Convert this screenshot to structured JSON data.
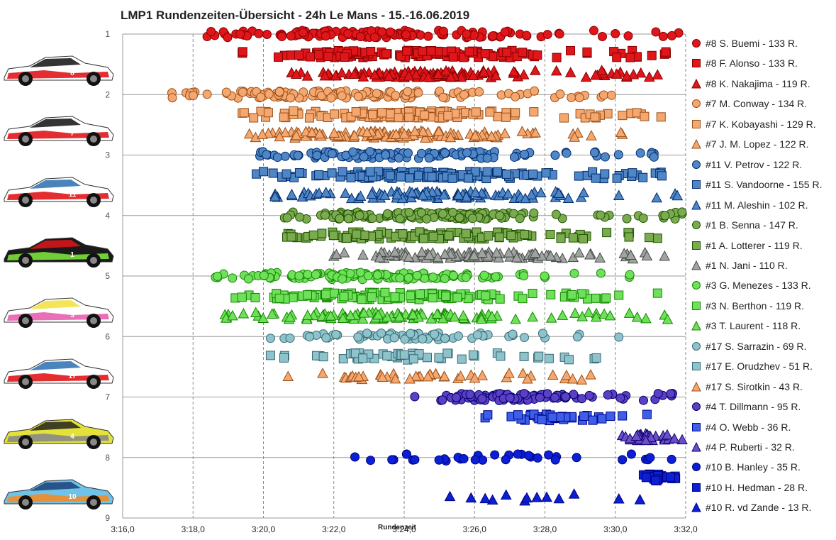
{
  "chart_data": {
    "type": "scatter",
    "title": "LMP1 Rundenzeiten-Übersicht - 24h Le Mans - 15.-16.06.2019",
    "xlabel": "Rundenzeit",
    "ylabel": "",
    "xlim": [
      "3:16,0",
      "3:32,0"
    ],
    "ylim": [
      1,
      9
    ],
    "x_ticks": [
      "3:16,0",
      "3:18,0",
      "3:20,0",
      "3:22,0",
      "3:24,0",
      "3:26,0",
      "3:28,0",
      "3:30,0",
      "3:32,0"
    ],
    "y_ticks": [
      "1",
      "2",
      "3",
      "4",
      "5",
      "6",
      "7",
      "8",
      "9"
    ],
    "grid": "vertical dashed, horizontal solid",
    "legend_position": "right",
    "series": [
      {
        "name": "#8 S. Buemi - 133 R.",
        "marker": "circle",
        "color": "#e0161b",
        "y_level": 1.0,
        "laps": 133,
        "x_min": "3:18,3",
        "x_max": "3:31,8",
        "x_values": [
          "3:18,4",
          "3:18,9",
          "3:20,1",
          "3:21,5",
          "3:22,4",
          "3:23,1",
          "3:24,2",
          "3:26,5",
          "3:28,4",
          "3:30,0",
          "3:31,8"
        ]
      },
      {
        "name": "#8 F. Alonso - 133 R.",
        "marker": "square",
        "color": "#e0161b",
        "y_level": 1.33,
        "laps": 133,
        "x_min": "3:19,3",
        "x_max": "3:31,5",
        "x_values": [
          "3:19,4",
          "3:20,6",
          "3:21,8",
          "3:23,0",
          "3:24,4",
          "3:25,5",
          "3:27,7",
          "3:29,2",
          "3:31,4"
        ]
      },
      {
        "name": "#8 K. Nakajima - 119 R.",
        "marker": "triangle",
        "color": "#e0161b",
        "y_level": 1.66,
        "laps": 119,
        "x_min": "3:20,7",
        "x_max": "3:31,3",
        "x_values": [
          "3:20,8",
          "3:21,7",
          "3:23,0",
          "3:24,3",
          "3:25,2",
          "3:27,4",
          "3:29,7",
          "3:31,2"
        ]
      },
      {
        "name": "#7 M. Conway - 134 R.",
        "marker": "circle",
        "color": "#f4a870",
        "y_level": 2.0,
        "laps": 134,
        "x_min": "3:17,3",
        "x_max": "3:30,1",
        "x_values": [
          "3:17,4",
          "3:18,4",
          "3:20,0",
          "3:21,5",
          "3:22,8",
          "3:24,0",
          "3:25,4",
          "3:27,3",
          "3:29,6"
        ]
      },
      {
        "name": "#7 K. Kobayashi - 129 R.",
        "marker": "square",
        "color": "#f4a870",
        "y_level": 2.33,
        "laps": 129,
        "x_min": "3:19,3",
        "x_max": "3:31,4",
        "x_values": [
          "3:19,4",
          "3:20,6",
          "3:22,3",
          "3:23,8",
          "3:25,0",
          "3:26,9",
          "3:29,0",
          "3:31,3"
        ]
      },
      {
        "name": "#7 J. M. Lopez - 122 R.",
        "marker": "triangle",
        "color": "#f4a870",
        "y_level": 2.66,
        "laps": 122,
        "x_min": "3:19,5",
        "x_max": "3:30,3",
        "x_values": [
          "3:19,6",
          "3:20,8",
          "3:22,0",
          "3:23,6",
          "3:24,9",
          "3:26,6",
          "3:28,8",
          "3:30,2"
        ]
      },
      {
        "name": "#11 V. Petrov - 122 R.",
        "marker": "circle",
        "color": "#4f86c6",
        "y_level": 3.0,
        "laps": 122,
        "x_min": "3:19,8",
        "x_max": "3:31,2",
        "x_values": [
          "3:19,9",
          "3:21,0",
          "3:22,9",
          "3:24,1",
          "3:25,6",
          "3:27,2",
          "3:28,6",
          "3:31,1"
        ]
      },
      {
        "name": "#11 S. Vandoorne - 155 R.",
        "marker": "square",
        "color": "#4f86c6",
        "y_level": 3.33,
        "laps": 155,
        "x_min": "3:19,8",
        "x_max": "3:31,4",
        "x_values": [
          "3:19,8",
          "3:21,1",
          "3:22,4",
          "3:23,7",
          "3:25,1",
          "3:26,5",
          "3:28,1",
          "3:30,3",
          "3:31,3"
        ]
      },
      {
        "name": "#11 M. Aleshin - 102 R.",
        "marker": "triangle",
        "color": "#4f86c6",
        "y_level": 3.66,
        "laps": 102,
        "x_min": "3:20,3",
        "x_max": "3:31,8",
        "x_values": [
          "3:20,4",
          "3:21,9",
          "3:23,3",
          "3:25,0",
          "3:26,6",
          "3:28,3",
          "3:30,1",
          "3:31,7"
        ]
      },
      {
        "name": "#1 B. Senna - 147 R.",
        "marker": "circle",
        "color": "#7aab4f",
        "y_level": 4.0,
        "laps": 147,
        "x_min": "3:20,5",
        "x_max": "3:32,0",
        "x_values": [
          "3:20,6",
          "3:22,0",
          "3:23,3",
          "3:24,6",
          "3:25,9",
          "3:27,4",
          "3:29,5",
          "3:31,9"
        ]
      },
      {
        "name": "#1 A. Lotterer - 119 R.",
        "marker": "square",
        "color": "#7aab4f",
        "y_level": 4.33,
        "laps": 119,
        "x_min": "3:20,6",
        "x_max": "3:31,3",
        "x_values": [
          "3:20,7",
          "3:22,6",
          "3:23,9",
          "3:25,2",
          "3:26,7",
          "3:28,6",
          "3:30,4",
          "3:31,2"
        ]
      },
      {
        "name": "#1 N. Jani - 110 R.",
        "marker": "triangle",
        "color": "#a0a4a0",
        "y_level": 4.66,
        "laps": 110,
        "x_min": "3:21,9",
        "x_max": "3:31,5",
        "x_values": [
          "3:22,0",
          "3:23,2",
          "3:24,5",
          "3:25,8",
          "3:27,2",
          "3:28,8",
          "3:30,3",
          "3:31,4"
        ]
      },
      {
        "name": "#3 G. Menezes - 133 R.",
        "marker": "circle",
        "color": "#6ee05a",
        "y_level": 5.0,
        "laps": 133,
        "x_min": "3:18,6",
        "x_max": "3:30,5",
        "x_values": [
          "3:18,7",
          "3:19,7",
          "3:20,8",
          "3:22,0",
          "3:23,6",
          "3:25,1",
          "3:26,5",
          "3:28,0",
          "3:30,4"
        ]
      },
      {
        "name": "#3 N. Berthon - 119 R.",
        "marker": "square",
        "color": "#6ee05a",
        "y_level": 5.33,
        "laps": 119,
        "x_min": "3:19,1",
        "x_max": "3:31,3",
        "x_values": [
          "3:19,2",
          "3:20,3",
          "3:21,8",
          "3:23,4",
          "3:24,9",
          "3:26,6",
          "3:28,6",
          "3:30,1",
          "3:31,2"
        ]
      },
      {
        "name": "#3 T. Laurent - 118 R.",
        "marker": "triangle",
        "color": "#6ee05a",
        "y_level": 5.66,
        "laps": 118,
        "x_min": "3:18,9",
        "x_max": "3:31,5",
        "x_values": [
          "3:19,0",
          "3:20,3",
          "3:21,7",
          "3:23,2",
          "3:24,8",
          "3:26,4",
          "3:28,5",
          "3:30,4",
          "3:31,4"
        ]
      },
      {
        "name": "#17 S. Sarrazin - 69 R.",
        "marker": "circle",
        "color": "#8fc3cc",
        "y_level": 6.0,
        "laps": 69,
        "x_min": "3:20,1",
        "x_max": "3:30,2",
        "x_values": [
          "3:20,2",
          "3:21,7",
          "3:23,1",
          "3:24,8",
          "3:26,3",
          "3:28,0",
          "3:30,1"
        ]
      },
      {
        "name": "#17 E. Orudzhev - 51 R.",
        "marker": "square",
        "color": "#8fc3cc",
        "y_level": 6.33,
        "laps": 51,
        "x_min": "3:20,1",
        "x_max": "3:29,5",
        "x_values": [
          "3:20,2",
          "3:21,6",
          "3:23,0",
          "3:24,4",
          "3:26,0",
          "3:27,8",
          "3:29,4"
        ]
      },
      {
        "name": "#17 S. Sirotkin - 43 R.",
        "marker": "triangle",
        "color": "#f4a870",
        "y_level": 6.66,
        "laps": 43,
        "x_min": "3:20,6",
        "x_max": "3:29,4",
        "x_values": [
          "3:20,7",
          "3:22,3",
          "3:23,7",
          "3:24,9",
          "3:25,9",
          "3:27,6",
          "3:29,3"
        ]
      },
      {
        "name": "#4 T. Dillmann - 95 R.",
        "marker": "circle",
        "color": "#5b3fc4",
        "y_level": 7.0,
        "laps": 95,
        "x_min": "3:24,2",
        "x_max": "3:31,7",
        "x_values": [
          "3:24,3",
          "3:25,2",
          "3:26,3",
          "3:27,6",
          "3:28,9",
          "3:30,3",
          "3:31,6"
        ]
      },
      {
        "name": "#4 O. Webb - 36 R.",
        "marker": "square",
        "color": "#3d5ee6",
        "y_level": 7.33,
        "laps": 36,
        "x_min": "3:26,2",
        "x_max": "3:31,0",
        "x_values": [
          "3:26,3",
          "3:27,6",
          "3:28,5",
          "3:29,2",
          "3:30,2",
          "3:30,9"
        ]
      },
      {
        "name": "#4 P. Ruberti - 32 R.",
        "marker": "triangle",
        "color": "#6a4fc8",
        "y_level": 7.66,
        "laps": 32,
        "x_min": "3:30,1",
        "x_max": "3:32,0",
        "x_values": [
          "3:30,2",
          "3:31,4",
          "3:31,9"
        ]
      },
      {
        "name": "#10 B. Hanley - 35 R.",
        "marker": "circle",
        "color": "#0b1fd6",
        "y_level": 8.0,
        "laps": 35,
        "x_min": "3:22,5",
        "x_max": "3:31,7",
        "x_values": [
          "3:22,6",
          "3:23,7",
          "3:26,1",
          "3:27,6",
          "3:28,9",
          "3:30,2",
          "3:31,6"
        ]
      },
      {
        "name": "#10 H. Hedman - 28 R.",
        "marker": "square",
        "color": "#0b1fd6",
        "y_level": 8.33,
        "laps": 28,
        "x_min": "3:30,7",
        "x_max": "3:31,8",
        "x_values": [
          "3:30,8",
          "3:31,2",
          "3:31,7"
        ]
      },
      {
        "name": "#10 R. vd Zande - 13 R.",
        "marker": "triangle",
        "color": "#0b1fd6",
        "y_level": 8.66,
        "laps": 13,
        "x_min": "3:25,2",
        "x_max": "3:30,8",
        "x_values": [
          "3:25,3",
          "3:25,9",
          "3:28,4",
          "3:30,7"
        ]
      }
    ]
  },
  "car_images": [
    {
      "icon": "toyota-8-car-icon",
      "colors": [
        "#ffffff",
        "#e0161b",
        "#111111"
      ],
      "number": "8"
    },
    {
      "icon": "toyota-7-car-icon",
      "colors": [
        "#ffffff",
        "#e0161b",
        "#111111"
      ],
      "number": "7"
    },
    {
      "icon": "smp-11-car-icon",
      "colors": [
        "#ffffff",
        "#e0161b",
        "#2a6fb0"
      ],
      "number": "11"
    },
    {
      "icon": "rebellion-1-car-icon",
      "colors": [
        "#1a1a1a",
        "#7ae23a",
        "#e0161b"
      ],
      "number": "1"
    },
    {
      "icon": "rebellion-3-car-icon",
      "colors": [
        "#ffffff",
        "#e85fb0",
        "#f2e03a"
      ],
      "number": "3"
    },
    {
      "icon": "smp-17-car-icon",
      "colors": [
        "#ffffff",
        "#e0161b",
        "#2a6fb0"
      ],
      "number": "17"
    },
    {
      "icon": "bykolles-4-car-icon",
      "colors": [
        "#e2e23a",
        "#8a8a8a",
        "#222222"
      ],
      "number": "4"
    },
    {
      "icon": "dragonspeed-10-car-icon",
      "colors": [
        "#6fc2e8",
        "#f28c28",
        "#1d3f7a"
      ],
      "number": "10"
    }
  ]
}
